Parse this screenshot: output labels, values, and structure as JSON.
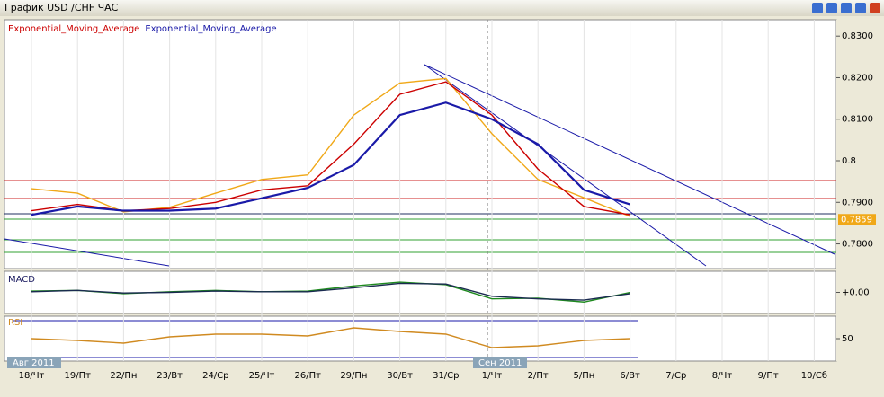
{
  "window": {
    "title": "График USD /CHF  ЧАС"
  },
  "chart_data": [
    {
      "type": "line",
      "categories": [
        "18/Чт",
        "19/Пт",
        "22/Пн",
        "23/Вт",
        "24/Ср",
        "25/Чт",
        "26/Пт",
        "29/Пн",
        "30/Вт",
        "31/Ср",
        "1/Чт",
        "2/Пт",
        "5/Пн",
        "6/Вт",
        "7/Ср",
        "8/Чт",
        "9/Пт",
        "10/Сб"
      ],
      "months": [
        "Авг 2011",
        "Сен 2011"
      ],
      "series": [
        {
          "color": "#f0a818",
          "values": [
            0.7933,
            0.7922,
            0.7877,
            0.7888,
            0.7922,
            0.7955,
            0.7966,
            0.811,
            0.8187,
            0.8198,
            0.8065,
            0.7955,
            0.7911,
            0.7866,
            null,
            null,
            null,
            null
          ]
        },
        {
          "name": "Exponential_Moving_Average",
          "color": "#cc0000",
          "values": [
            0.788,
            0.7895,
            0.788,
            0.7885,
            0.79,
            0.793,
            0.794,
            0.804,
            0.816,
            0.819,
            0.811,
            0.798,
            0.789,
            0.787,
            null,
            null,
            null,
            null
          ]
        },
        {
          "name": "Exponential_Moving_Average",
          "color": "#1a1aa8",
          "values": [
            0.787,
            0.789,
            0.788,
            0.788,
            0.7885,
            0.791,
            0.7935,
            0.799,
            0.811,
            0.814,
            0.81,
            0.804,
            0.793,
            0.7895,
            null,
            null,
            null,
            null
          ]
        }
      ],
      "last_price": 0.7859,
      "ylim": [
        0.7745,
        0.8335
      ],
      "yticks": [
        {
          "value": 0.78,
          "label": "0.7800"
        },
        {
          "value": 0.79,
          "label": "0.7900"
        },
        0.8,
        {
          "value": 0.81,
          "label": "0.8100"
        },
        {
          "value": 0.82,
          "label": "0.8200"
        },
        {
          "value": 0.83,
          "label": "0.8300"
        }
      ],
      "grid": true
    },
    {
      "type": "line",
      "title": "MACD",
      "series": [
        {
          "color": "#1f8a1f",
          "values": [
            0.0002,
            0.0003,
            -0.0002,
            0.0001,
            0.0003,
            0.0001,
            0.0002,
            0.001,
            0.0016,
            0.0012,
            -0.001,
            -0.0009,
            -0.0015,
            0.0,
            null,
            null,
            null,
            null
          ]
        },
        {
          "color": "#1a2a50",
          "values": [
            0.0001,
            0.0003,
            -0.0001,
            0.0,
            0.0002,
            0.0001,
            0.0001,
            0.0007,
            0.0014,
            0.0013,
            -0.0006,
            -0.001,
            -0.0012,
            -0.0002,
            null,
            null,
            null,
            null
          ]
        }
      ],
      "ylim": [
        -0.003,
        0.003
      ],
      "yticks": [
        {
          "value": 0,
          "label": "+0.00"
        }
      ]
    },
    {
      "type": "line",
      "title": "RSI",
      "series": [
        {
          "color": "#d08a20",
          "values": [
            50,
            48,
            45,
            52,
            55,
            55,
            53,
            62,
            58,
            55,
            40,
            42,
            48,
            50,
            null,
            null,
            null,
            null
          ]
        }
      ],
      "ylim": [
        25,
        75
      ],
      "yticks": [
        50
      ]
    }
  ]
}
